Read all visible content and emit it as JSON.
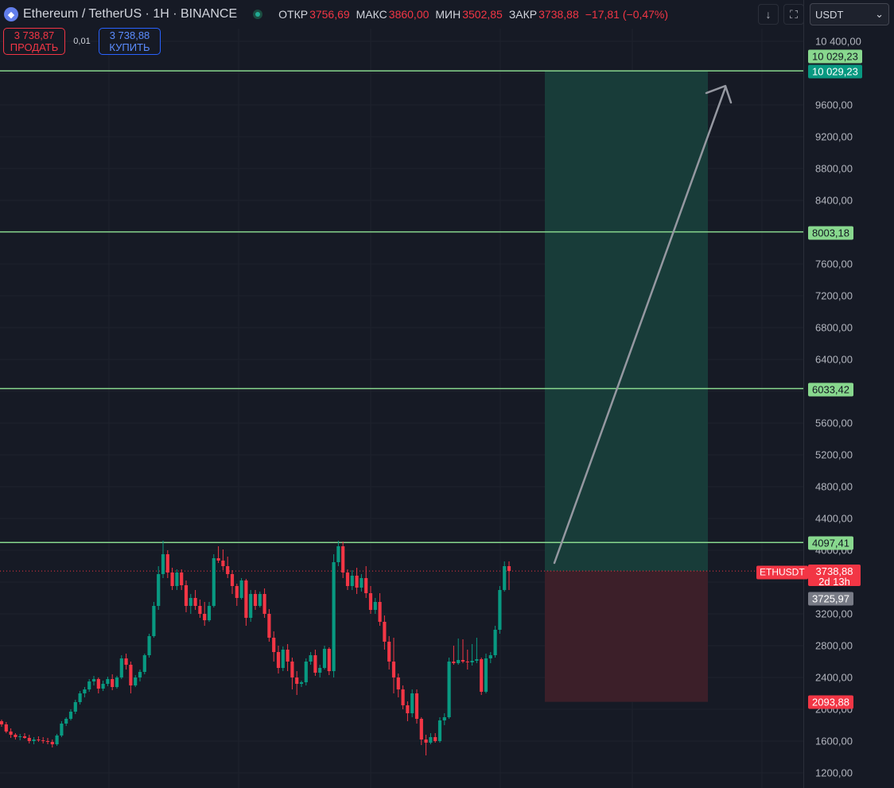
{
  "header": {
    "symbol_title": "Ethereum / TetherUS · 1H · BINANCE",
    "ohlc": {
      "open_label": "ОТКР",
      "open_value": "3756,69",
      "high_label": "МАКС",
      "high_value": "3860,00",
      "low_label": "МИН",
      "low_value": "3502,85",
      "close_label": "ЗАКР",
      "close_value": "3738,88",
      "change": "−17,81 (−0,47%)"
    }
  },
  "trade": {
    "sell_price": "3 738,87",
    "sell_label": "ПРОДАТЬ",
    "spread": "0,01",
    "buy_price": "3 738,88",
    "buy_label": "КУПИТЬ"
  },
  "toolbar": {
    "currency": "USDT",
    "download_icon": "arrow-down-icon",
    "fullscreen_icon": "fullscreen-icon"
  },
  "price_axis": {
    "ticks": [
      "10 400,00",
      "9600,00",
      "9200,00",
      "8800,00",
      "8400,00",
      "7600,00",
      "7200,00",
      "6800,00",
      "6400,00",
      "5600,00",
      "5200,00",
      "4800,00",
      "4400,00",
      "4000,00",
      "3200,00",
      "2800,00",
      "2400,00",
      "2000,00",
      "1600,00",
      "1200,00"
    ],
    "labels": {
      "target_top_upper": "10 029,23",
      "target_top": "10 029,23",
      "level_8003": "8003,18",
      "level_6033": "6033,42",
      "level_4097": "4097,41",
      "symbol_badge": "ETHUSDT",
      "last_price": "3738,88",
      "countdown": "2d 13h",
      "prev_price": "3725,97",
      "stop_level": "2093,88"
    }
  },
  "colors": {
    "background": "#161a25",
    "bull": "#089981",
    "bear": "#f23645",
    "level_line": "#88d88e",
    "profit_zone": "#183c39",
    "loss_zone": "#3c1f29",
    "arrow": "#9598a1"
  },
  "chart_data": {
    "type": "candlestick",
    "symbol": "ETHUSDT",
    "interval": "1H",
    "y_axis_range": [
      1200,
      10400
    ],
    "horizontal_levels": [
      10029.23,
      8003.18,
      6033.42,
      4097.41
    ],
    "last_price": 3738.88,
    "position": {
      "entry": 3738.88,
      "target": 10029.23,
      "stop": 2093.88
    },
    "candles": [
      [
        1850,
        1870,
        1780,
        1810
      ],
      [
        1810,
        1840,
        1700,
        1720
      ],
      [
        1720,
        1760,
        1640,
        1680
      ],
      [
        1680,
        1700,
        1620,
        1650
      ],
      [
        1650,
        1690,
        1610,
        1660
      ],
      [
        1660,
        1700,
        1630,
        1640
      ],
      [
        1640,
        1680,
        1570,
        1600
      ],
      [
        1600,
        1650,
        1560,
        1620
      ],
      [
        1620,
        1660,
        1590,
        1610
      ],
      [
        1610,
        1650,
        1570,
        1600
      ],
      [
        1600,
        1640,
        1560,
        1590
      ],
      [
        1590,
        1620,
        1520,
        1560
      ],
      [
        1560,
        1690,
        1540,
        1670
      ],
      [
        1670,
        1850,
        1650,
        1820
      ],
      [
        1820,
        1900,
        1790,
        1880
      ],
      [
        1880,
        2000,
        1860,
        1970
      ],
      [
        1970,
        2120,
        1940,
        2090
      ],
      [
        2090,
        2230,
        2060,
        2200
      ],
      [
        2200,
        2280,
        2150,
        2250
      ],
      [
        2250,
        2380,
        2220,
        2350
      ],
      [
        2350,
        2420,
        2300,
        2380
      ],
      [
        2380,
        2400,
        2200,
        2260
      ],
      [
        2260,
        2360,
        2230,
        2320
      ],
      [
        2320,
        2410,
        2290,
        2380
      ],
      [
        2380,
        2440,
        2240,
        2280
      ],
      [
        2280,
        2420,
        2260,
        2400
      ],
      [
        2400,
        2680,
        2380,
        2640
      ],
      [
        2640,
        2700,
        2500,
        2560
      ],
      [
        2560,
        2600,
        2200,
        2300
      ],
      [
        2300,
        2430,
        2280,
        2400
      ],
      [
        2400,
        2500,
        2350,
        2470
      ],
      [
        2470,
        2700,
        2440,
        2680
      ],
      [
        2680,
        2950,
        2650,
        2920
      ],
      [
        2920,
        3350,
        2900,
        3300
      ],
      [
        3300,
        3800,
        3250,
        3700
      ],
      [
        3700,
        4120,
        3650,
        3950
      ],
      [
        3950,
        4000,
        3650,
        3720
      ],
      [
        3720,
        3780,
        3500,
        3550
      ],
      [
        3550,
        3760,
        3500,
        3720
      ],
      [
        3720,
        3760,
        3500,
        3560
      ],
      [
        3560,
        3620,
        3220,
        3300
      ],
      [
        3300,
        3450,
        3200,
        3400
      ],
      [
        3400,
        3500,
        3250,
        3300
      ],
      [
        3300,
        3380,
        3150,
        3200
      ],
      [
        3200,
        3350,
        3050,
        3120
      ],
      [
        3120,
        3350,
        3100,
        3300
      ],
      [
        3300,
        3950,
        3280,
        3900
      ],
      [
        3900,
        4050,
        3840,
        3870
      ],
      [
        3870,
        4010,
        3750,
        3800
      ],
      [
        3800,
        3920,
        3650,
        3700
      ],
      [
        3700,
        3750,
        3450,
        3550
      ],
      [
        3550,
        3580,
        3300,
        3400
      ],
      [
        3400,
        3650,
        3380,
        3620
      ],
      [
        3620,
        3640,
        3050,
        3150
      ],
      [
        3150,
        3500,
        3100,
        3450
      ],
      [
        3450,
        3500,
        3250,
        3300
      ],
      [
        3300,
        3480,
        3280,
        3450
      ],
      [
        3450,
        3520,
        3150,
        3200
      ],
      [
        3200,
        3260,
        2850,
        2900
      ],
      [
        2900,
        2980,
        2600,
        2720
      ],
      [
        2720,
        2800,
        2450,
        2520
      ],
      [
        2520,
        2790,
        2480,
        2750
      ],
      [
        2750,
        2820,
        2480,
        2600
      ],
      [
        2600,
        2650,
        2250,
        2400
      ],
      [
        2400,
        2480,
        2180,
        2320
      ],
      [
        2320,
        2360,
        2280,
        2340
      ],
      [
        2340,
        2640,
        2300,
        2600
      ],
      [
        2600,
        2720,
        2560,
        2680
      ],
      [
        2680,
        2750,
        2420,
        2460
      ],
      [
        2460,
        2560,
        2400,
        2520
      ],
      [
        2520,
        2800,
        2500,
        2760
      ],
      [
        2760,
        2780,
        2430,
        2480
      ],
      [
        2480,
        3950,
        2400,
        3850
      ],
      [
        3850,
        4120,
        3800,
        4050
      ],
      [
        4050,
        4110,
        3650,
        3720
      ],
      [
        3720,
        3760,
        3500,
        3550
      ],
      [
        3550,
        3750,
        3500,
        3680
      ],
      [
        3680,
        3780,
        3450,
        3530
      ],
      [
        3530,
        3700,
        3480,
        3650
      ],
      [
        3650,
        3800,
        3400,
        3460
      ],
      [
        3460,
        3550,
        3200,
        3250
      ],
      [
        3250,
        3400,
        3200,
        3350
      ],
      [
        3350,
        3460,
        3050,
        3100
      ],
      [
        3100,
        3180,
        2750,
        2850
      ],
      [
        2850,
        2920,
        2500,
        2600
      ],
      [
        2600,
        2900,
        2200,
        2400
      ],
      [
        2400,
        2450,
        2150,
        2250
      ],
      [
        2250,
        2300,
        2000,
        2050
      ],
      [
        2050,
        2100,
        1850,
        1950
      ],
      [
        1950,
        2250,
        1900,
        2200
      ],
      [
        2200,
        2250,
        1820,
        1880
      ],
      [
        1880,
        1900,
        1550,
        1620
      ],
      [
        1620,
        1680,
        1420,
        1580
      ],
      [
        1580,
        1700,
        1560,
        1650
      ],
      [
        1650,
        1700,
        1580,
        1600
      ],
      [
        1600,
        1900,
        1580,
        1860
      ],
      [
        1860,
        1950,
        1800,
        1900
      ],
      [
        1900,
        2650,
        1880,
        2600
      ],
      [
        2600,
        2800,
        2560,
        2580
      ],
      [
        2580,
        2890,
        2560,
        2620
      ],
      [
        2620,
        2880,
        2580,
        2600
      ],
      [
        2600,
        2750,
        2500,
        2590
      ],
      [
        2590,
        2820,
        2550,
        2610
      ],
      [
        2610,
        2900,
        2580,
        2630
      ],
      [
        2630,
        2650,
        2180,
        2220
      ],
      [
        2220,
        2700,
        2200,
        2640
      ],
      [
        2640,
        2720,
        2580,
        2680
      ],
      [
        2680,
        3050,
        2650,
        3000
      ],
      [
        3000,
        3550,
        2950,
        3500
      ],
      [
        3500,
        3860,
        3480,
        3800
      ],
      [
        3800,
        3860,
        3500,
        3739
      ]
    ]
  }
}
